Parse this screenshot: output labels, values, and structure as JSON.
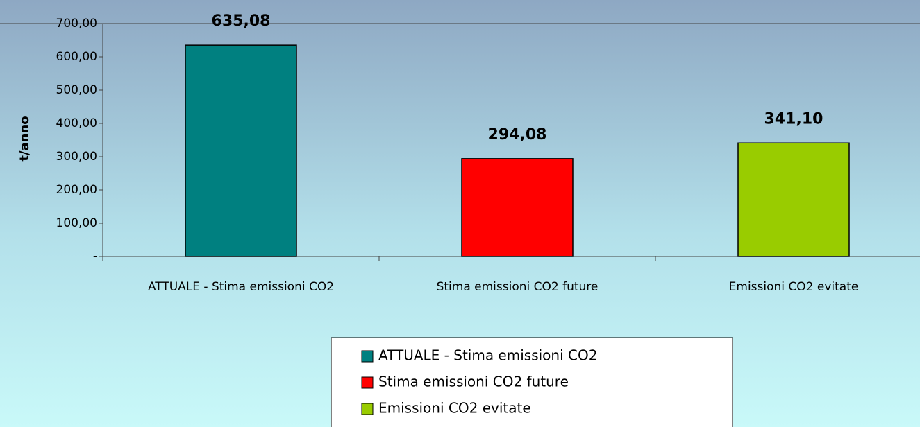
{
  "chart_data": {
    "type": "bar",
    "ylabel": "t/anno",
    "categories": [
      "ATTUALE - Stima emissioni CO2",
      "Stima emissioni CO2 future",
      "Emissioni CO2 evitate"
    ],
    "values": [
      635.08,
      294.08,
      341.1
    ],
    "value_labels": [
      "635,08",
      "294,08",
      "341,10"
    ],
    "colors": [
      "#008080",
      "#ff0000",
      "#99cc00"
    ],
    "ylim": [
      0,
      700
    ],
    "yticks": [
      {
        "value": 0,
        "label": "-"
      },
      {
        "value": 100,
        "label": "100,00"
      },
      {
        "value": 200,
        "label": "200,00"
      },
      {
        "value": 300,
        "label": "300,00"
      },
      {
        "value": 400,
        "label": "400,00"
      },
      {
        "value": 500,
        "label": "500,00"
      },
      {
        "value": 600,
        "label": "600,00"
      },
      {
        "value": 700,
        "label": "700,00"
      }
    ],
    "legend": "bottom"
  }
}
